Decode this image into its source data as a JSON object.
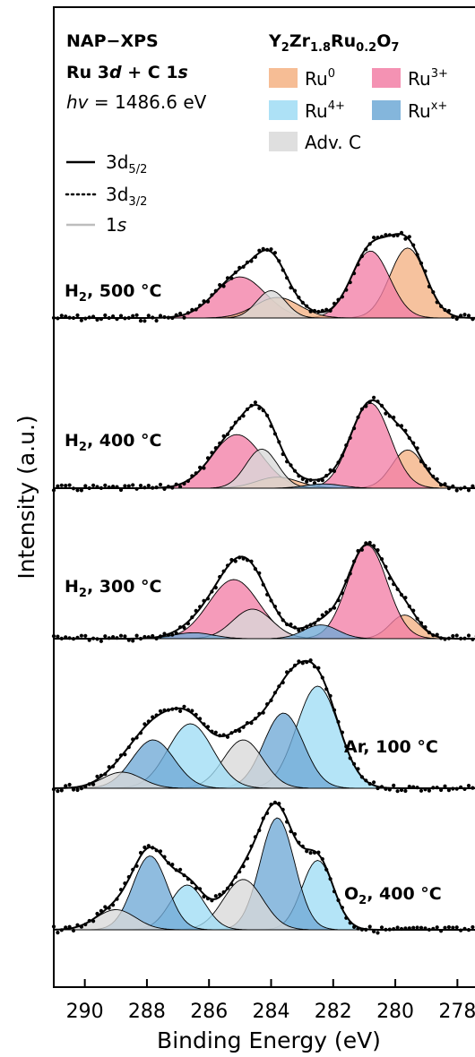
{
  "chart_data": {
    "type": "line",
    "xlabel": "Binding Energy (eV)",
    "ylabel": "Intensity (a.u.)",
    "xlim": [
      291,
      277
    ],
    "x_reversed": true,
    "x_ticks": [
      290,
      288,
      286,
      284,
      282,
      280,
      278
    ],
    "y_ticks_shown": false,
    "grid": false,
    "legend_left": {
      "title1": "NAP−XPS",
      "title2_parts": [
        "Ru 3",
        "d",
        " + C 1",
        "s"
      ],
      "energy_parts": [
        "hv",
        " = 1486.6 eV"
      ],
      "line_entries": [
        {
          "main": "3d",
          "sub": "5/2",
          "style": "solid",
          "color": "#000000"
        },
        {
          "main": "3d",
          "sub": "3/2",
          "style": "dotted",
          "color": "#000000"
        },
        {
          "main": "1",
          "italic": "s",
          "style": "solid",
          "color": "#bdbdbd"
        }
      ]
    },
    "legend_right": {
      "title_parts": [
        {
          "t": "Y"
        },
        {
          "t": "2",
          "sub": true
        },
        {
          "t": "Zr"
        },
        {
          "t": "1.8",
          "sub": true
        },
        {
          "t": "Ru"
        },
        {
          "t": "0.2",
          "sub": true
        },
        {
          "t": "O"
        },
        {
          "t": "7",
          "sub": true
        }
      ],
      "entries": [
        {
          "label": "Ru",
          "sup": "0",
          "color": "#f4b183"
        },
        {
          "label": "Ru",
          "sup": "3+",
          "color": "#f27fa6"
        },
        {
          "label": "Ru",
          "sup": "4+",
          "color": "#9fdcf5"
        },
        {
          "label": "Ru",
          "sup": "x+",
          "color": "#6fa9d6"
        },
        {
          "label": "Adv. C",
          "sup": "",
          "color": "#d9d9d9"
        }
      ]
    },
    "spectra": [
      {
        "label_main": "H",
        "label_sub": "2",
        "label_rest": ", 500 °C",
        "label_pos": "left",
        "components": [
          {
            "species": "Ru0",
            "center": 279.6,
            "amp": 0.92,
            "fwhm": 1.35
          },
          {
            "species": "Ru3+",
            "center": 280.8,
            "amp": 0.88,
            "fwhm": 1.45
          },
          {
            "species": "Ru3+",
            "center": 285.0,
            "amp": 0.54,
            "fwhm": 1.9
          },
          {
            "species": "Ru0",
            "center": 283.8,
            "amp": 0.27,
            "fwhm": 1.7
          },
          {
            "species": "AdvC",
            "center": 284.0,
            "amp": 0.36,
            "fwhm": 1.1
          }
        ]
      },
      {
        "label_main": "H",
        "label_sub": "2",
        "label_rest": ", 400 °C",
        "label_pos": "left",
        "components": [
          {
            "species": "Ru0",
            "center": 279.6,
            "amp": 0.45,
            "fwhm": 1.2
          },
          {
            "species": "Ru3+",
            "center": 280.8,
            "amp": 1.0,
            "fwhm": 1.5
          },
          {
            "species": "Ru3+",
            "center": 285.1,
            "amp": 0.63,
            "fwhm": 1.9
          },
          {
            "species": "Ru0",
            "center": 283.8,
            "amp": 0.13,
            "fwhm": 1.6
          },
          {
            "species": "AdvC",
            "center": 284.3,
            "amp": 0.46,
            "fwhm": 1.2
          },
          {
            "species": "Rux+",
            "center": 282.3,
            "amp": 0.05,
            "fwhm": 1.4
          }
        ]
      },
      {
        "label_main": "H",
        "label_sub": "2",
        "label_rest": ", 300 °C",
        "label_pos": "left",
        "components": [
          {
            "species": "Ru0",
            "center": 279.7,
            "amp": 0.24,
            "fwhm": 1.1
          },
          {
            "species": "Ru3+",
            "center": 280.9,
            "amp": 0.95,
            "fwhm": 1.5
          },
          {
            "species": "Ru3+",
            "center": 285.2,
            "amp": 0.6,
            "fwhm": 1.9
          },
          {
            "species": "AdvC",
            "center": 284.6,
            "amp": 0.3,
            "fwhm": 1.5
          },
          {
            "species": "Rux+",
            "center": 282.4,
            "amp": 0.14,
            "fwhm": 1.3
          },
          {
            "species": "Rux+",
            "center": 286.5,
            "amp": 0.06,
            "fwhm": 1.5
          }
        ]
      },
      {
        "label_main": "Ar, 100 °C",
        "label_sub": "",
        "label_rest": "",
        "label_pos": "right",
        "components": [
          {
            "species": "Ru4+",
            "center": 282.5,
            "amp": 0.95,
            "fwhm": 1.6
          },
          {
            "species": "Rux+",
            "center": 283.6,
            "amp": 0.7,
            "fwhm": 1.5
          },
          {
            "species": "AdvC",
            "center": 284.9,
            "amp": 0.45,
            "fwhm": 1.5
          },
          {
            "species": "Ru4+",
            "center": 286.6,
            "amp": 0.6,
            "fwhm": 1.7
          },
          {
            "species": "Rux+",
            "center": 287.8,
            "amp": 0.45,
            "fwhm": 1.6
          },
          {
            "species": "AdvC",
            "center": 288.8,
            "amp": 0.15,
            "fwhm": 1.5
          }
        ]
      },
      {
        "label_main": "O",
        "label_sub": "2",
        "label_rest": ", 400 °C",
        "label_pos": "right",
        "components": [
          {
            "species": "Ru4+",
            "center": 282.5,
            "amp": 0.62,
            "fwhm": 1.2
          },
          {
            "species": "Rux+",
            "center": 283.8,
            "amp": 1.0,
            "fwhm": 1.3
          },
          {
            "species": "AdvC",
            "center": 284.9,
            "amp": 0.45,
            "fwhm": 1.5
          },
          {
            "species": "Ru4+",
            "center": 286.7,
            "amp": 0.4,
            "fwhm": 1.3
          },
          {
            "species": "Rux+",
            "center": 287.9,
            "amp": 0.66,
            "fwhm": 1.3
          },
          {
            "species": "AdvC",
            "center": 289.0,
            "amp": 0.18,
            "fwhm": 1.5
          }
        ]
      }
    ],
    "species_colors": {
      "Ru0": "#f4b183",
      "Ru3+": "#f27fa6",
      "Ru4+": "#9fdcf5",
      "Rux+": "#6fa9d6",
      "AdvC": "#d9d9d9"
    },
    "envelope_color": "#000000",
    "data_point_color": "#000000"
  }
}
